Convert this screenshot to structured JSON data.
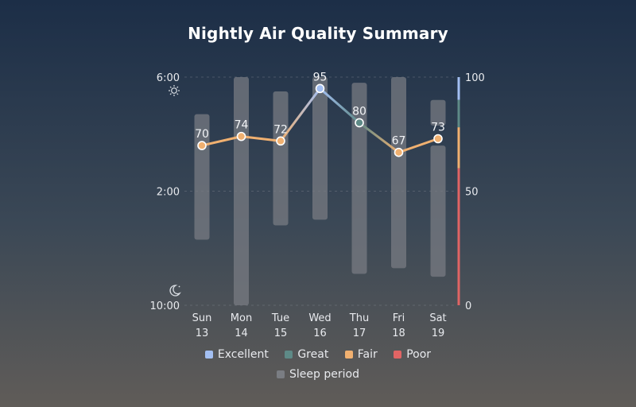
{
  "chart_data": {
    "type": "bar+line",
    "title": "Nightly Air Quality Summary",
    "categories": [
      "Sun",
      "Mon",
      "Tue",
      "Wed",
      "Thu",
      "Fri",
      "Sat"
    ],
    "dates": [
      "13",
      "14",
      "15",
      "16",
      "17",
      "18",
      "19"
    ],
    "sleep_axis": {
      "ticks": [
        "6:00",
        "2:00",
        "10:00"
      ],
      "tick_hours": [
        6,
        2,
        -2
      ],
      "range_hours": [
        -2,
        6
      ]
    },
    "score_axis": {
      "ticks": [
        100,
        50,
        0
      ],
      "range": [
        0,
        100
      ]
    },
    "sleep_periods": [
      {
        "start": 0.3,
        "end": 4.7
      },
      {
        "start": -2.0,
        "end": 6.0
      },
      {
        "start": 0.8,
        "end": 5.5
      },
      {
        "start": 1.0,
        "end": 6.0
      },
      {
        "start": -0.9,
        "end": 5.8
      },
      {
        "start": -0.7,
        "end": 6.0
      },
      {
        "start": -1.0,
        "end": 3.6,
        "start2": 4.3,
        "end2": 5.2
      }
    ],
    "scores": [
      70,
      74,
      72,
      95,
      80,
      67,
      73
    ],
    "levels": [
      {
        "name": "Excellent",
        "min": 90,
        "color": "#a3bff2"
      },
      {
        "name": "Great",
        "min": 78,
        "color": "#5e8a87"
      },
      {
        "name": "Fair",
        "min": 60,
        "color": "#f0b070"
      },
      {
        "name": "Poor",
        "min": 0,
        "color": "#e06464"
      }
    ],
    "legend": [
      "Excellent",
      "Great",
      "Fair",
      "Poor"
    ],
    "sleep_legend": "Sleep period",
    "sleep_color": "#7a7d83"
  }
}
